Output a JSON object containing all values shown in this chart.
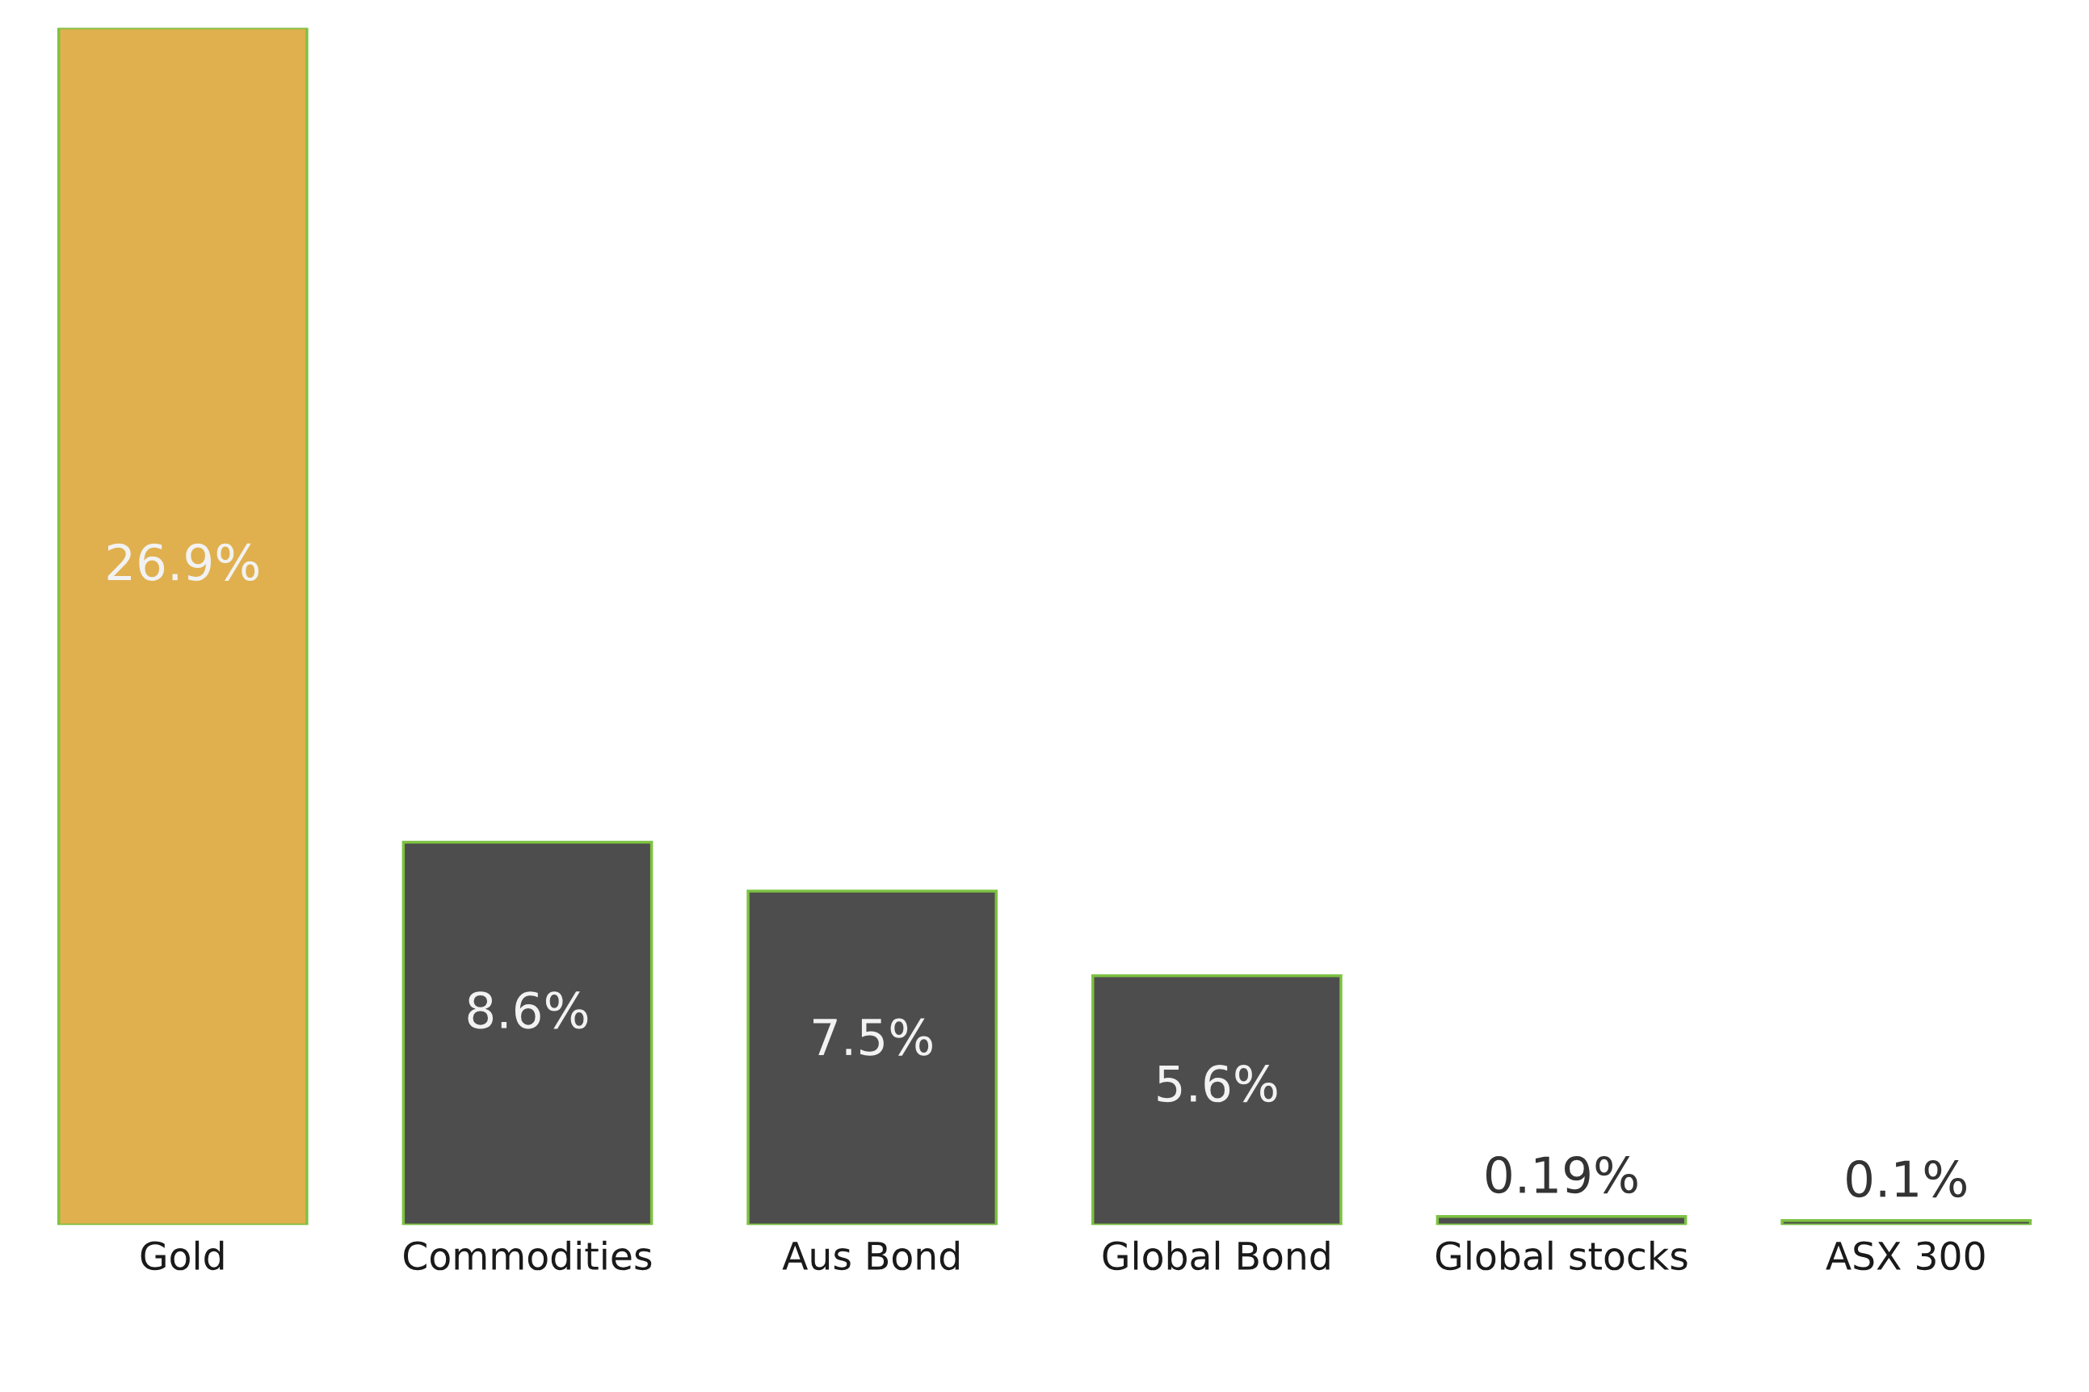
{
  "chart_data": {
    "type": "bar",
    "categories": [
      "Gold",
      "Commodities",
      "Aus Bond",
      "Global Bond",
      "Global stocks",
      "ASX 300"
    ],
    "values": [
      26.9,
      8.6,
      7.5,
      5.6,
      0.19,
      0.1
    ],
    "colors": [
      "#e0b04f",
      "#4d4d4d",
      "#4d4d4d",
      "#4d4d4d",
      "#4d4d4d",
      "#4d4d4d"
    ],
    "value_labels": [
      "26.9%",
      "8.6%",
      "7.5%",
      "5.6%",
      "0.19%",
      "0.1%"
    ],
    "grid": false,
    "legend": false
  }
}
